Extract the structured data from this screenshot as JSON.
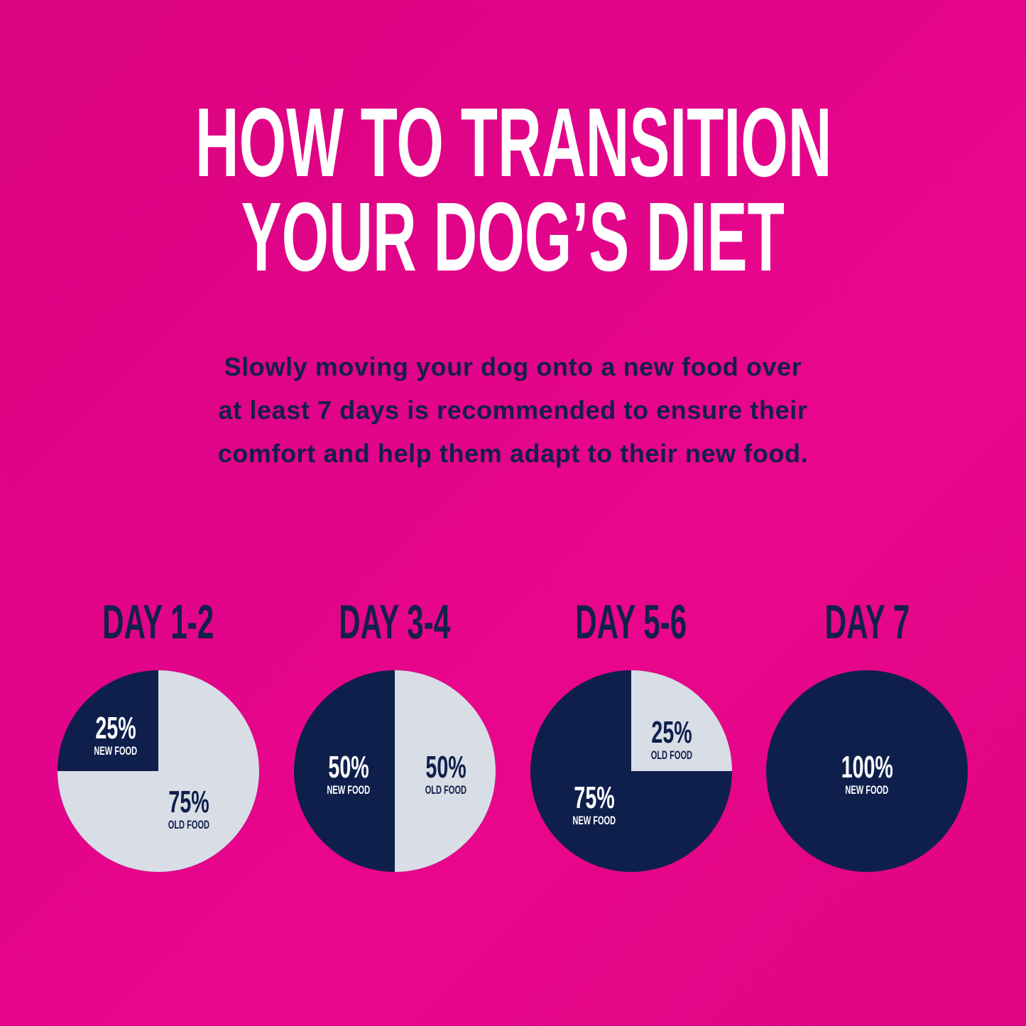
{
  "title": {
    "line1": "HOW TO TRANSITION",
    "line2": "YOUR DOG’S DIET"
  },
  "subtitle": {
    "lines": [
      "Slowly moving your dog onto a new food over",
      "at least 7 days is recommended to ensure their",
      "comfort and help them adapt to their new food."
    ]
  },
  "colors": {
    "background": "#e2048a",
    "new_food": "#0f1f4c",
    "old_food": "#d9dde5",
    "title": "#ffffff",
    "text": "#14204a"
  },
  "chart_data": [
    {
      "type": "pie",
      "title": "DAY 1-2",
      "slices": [
        {
          "label": "NEW FOOD",
          "value": 25,
          "text": "25%"
        },
        {
          "label": "OLD FOOD",
          "value": 75,
          "text": "75%"
        }
      ]
    },
    {
      "type": "pie",
      "title": "DAY 3-4",
      "slices": [
        {
          "label": "NEW FOOD",
          "value": 50,
          "text": "50%"
        },
        {
          "label": "OLD FOOD",
          "value": 50,
          "text": "50%"
        }
      ]
    },
    {
      "type": "pie",
      "title": "DAY 5-6",
      "slices": [
        {
          "label": "NEW FOOD",
          "value": 75,
          "text": "75%"
        },
        {
          "label": "OLD FOOD",
          "value": 25,
          "text": "25%"
        }
      ]
    },
    {
      "type": "pie",
      "title": "DAY 7",
      "slices": [
        {
          "label": "NEW FOOD",
          "value": 100,
          "text": "100%"
        }
      ]
    }
  ]
}
